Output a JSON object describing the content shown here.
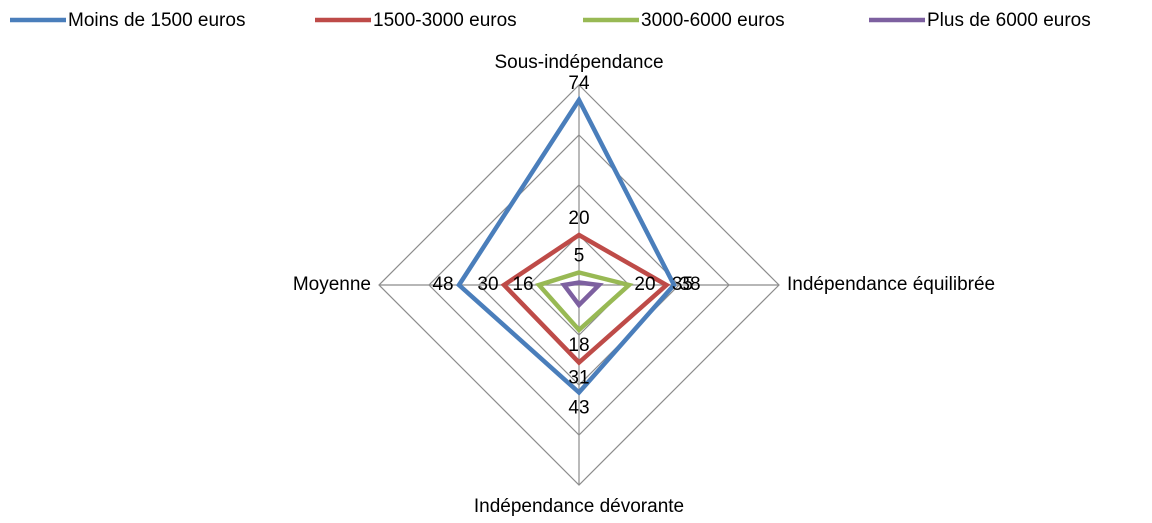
{
  "chart_data": {
    "type": "radar",
    "categories": [
      "Sous-indépendance",
      "Indépendance équilibrée",
      "Indépendance dévorante",
      "Moyenne"
    ],
    "series": [
      {
        "name": "Moins de 1500 euros",
        "color": "#4a7ebb",
        "values": [
          74,
          38,
          43,
          48
        ],
        "data_labels": true
      },
      {
        "name": "1500-3000 euros",
        "color": "#be4b48",
        "values": [
          20,
          35,
          31,
          30
        ],
        "data_labels": true
      },
      {
        "name": "3000-6000 euros",
        "color": "#98b954",
        "values": [
          5,
          20,
          18,
          16
        ],
        "data_labels": true
      },
      {
        "name": "Plus de 6000 euros",
        "color": "#7d60a0",
        "values": [
          1,
          8,
          8,
          6
        ],
        "data_labels": false
      }
    ],
    "rlim": [
      0,
      80
    ],
    "rticks": [
      20,
      40,
      60,
      80
    ],
    "grid": true,
    "legend": "top"
  }
}
